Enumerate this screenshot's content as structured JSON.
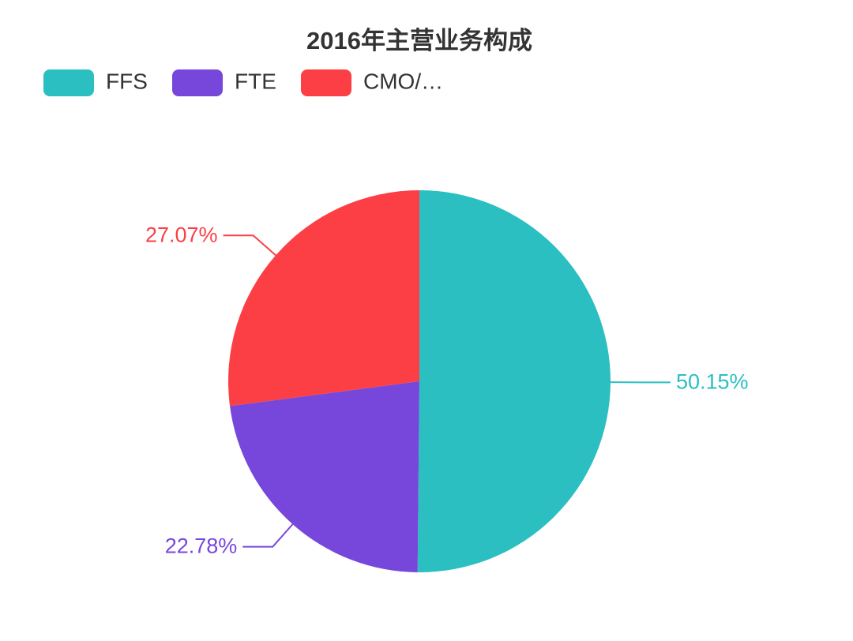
{
  "chart_data": {
    "type": "pie",
    "title": "2016年主营业务构成",
    "categories": [
      "FFS",
      "FTE",
      "CMO/…"
    ],
    "values": [
      50.15,
      22.78,
      27.07
    ],
    "value_labels": [
      "50.15%",
      "22.78%",
      "27.07%"
    ],
    "colors": [
      "#2bbfc1",
      "#7747db",
      "#fb3f45"
    ],
    "legend": "top-left"
  }
}
